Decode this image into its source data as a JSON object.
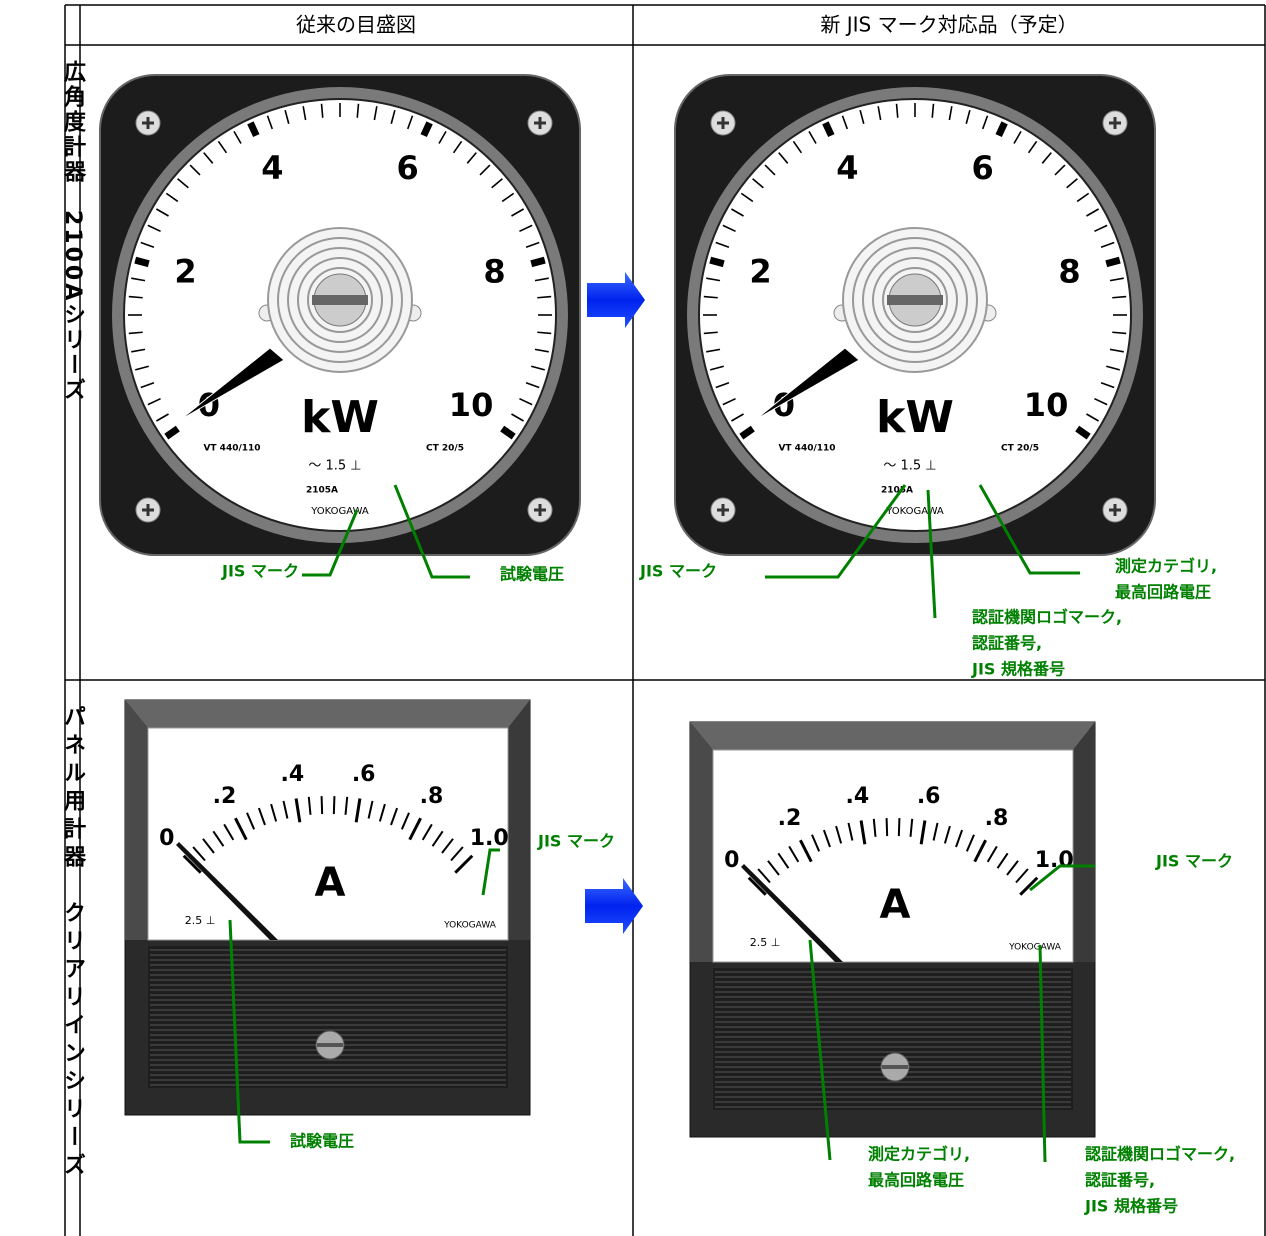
{
  "header": {
    "columns": [
      "従来の目盛図",
      "新 JIS マーク対応品（予定）"
    ]
  },
  "rows": [
    {
      "label": "広角度計器　2100Aシリーズ",
      "meter": {
        "scale": [
          "0",
          "2",
          "4",
          "6",
          "8",
          "10"
        ],
        "unit": "kW",
        "vt": "VT 440/110",
        "ct": "CT 20/5",
        "marking": "～ 1.5 ⊥",
        "model": "2105A",
        "brand": "YOKOGAWA"
      },
      "before": {
        "callouts": [
          {
            "lines": [
              "JIS マーク"
            ]
          },
          {
            "lines": [
              "試験電圧"
            ]
          }
        ]
      },
      "after": {
        "callouts": [
          {
            "lines": [
              "JIS マーク"
            ]
          },
          {
            "lines": [
              "測定カテゴリ,",
              "最高回路電圧"
            ]
          },
          {
            "lines": [
              "認証機関ロゴマーク,",
              "認証番号,",
              "JIS 規格番号"
            ]
          }
        ]
      }
    },
    {
      "label": "パネル用計器　クリアリインシリーズ",
      "meter": {
        "scale": [
          "0",
          ".2",
          ".4",
          ".6",
          ".8",
          "1.0"
        ],
        "unit": "A",
        "marking": "2.5 ⊥",
        "brand": "YOKOGAWA"
      },
      "before": {
        "callouts": [
          {
            "lines": [
              "JIS マーク"
            ]
          },
          {
            "lines": [
              "試験電圧"
            ]
          }
        ]
      },
      "after": {
        "callouts": [
          {
            "lines": [
              "JIS マーク"
            ]
          },
          {
            "lines": [
              "測定カテゴリ,",
              "最高回路電圧"
            ]
          },
          {
            "lines": [
              "認証機関ロゴマーク,",
              "認証番号,",
              "JIS 規格番号"
            ]
          }
        ]
      }
    }
  ]
}
